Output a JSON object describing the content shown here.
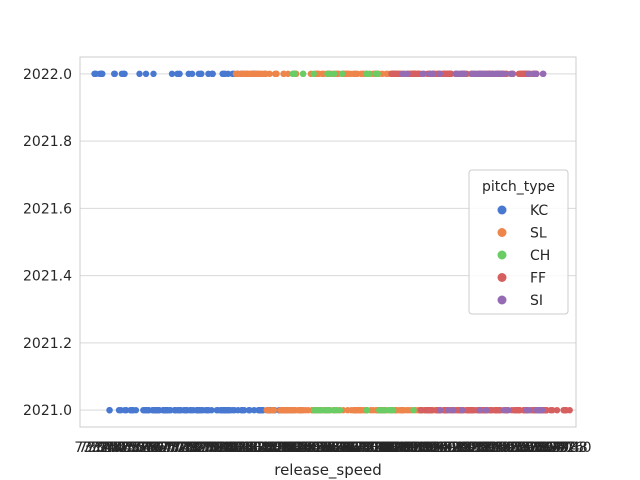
{
  "chart_data": {
    "type": "scatter",
    "style": "strip",
    "title": "",
    "xlabel": "release_speed",
    "ylabel": "",
    "y_ticks": [
      "2021.0",
      "2021.2",
      "2021.4",
      "2021.6",
      "2021.8",
      "2022.0"
    ],
    "ylim": [
      2020.95,
      2022.05
    ],
    "grid": true,
    "x_categories_note": "Hundreds of overlapping categorical release_speed tick labels (approx. 73.0 to 98.0 mph) render as an illegible smear along the x-axis.",
    "x_range": [
      73.0,
      98.0
    ],
    "legend": {
      "title": "pitch_type",
      "placement": "center-right",
      "entries": [
        {
          "name": "KC",
          "color": "#4878d0"
        },
        {
          "name": "SL",
          "color": "#ee854a"
        },
        {
          "name": "CH",
          "color": "#6acc64"
        },
        {
          "name": "FF",
          "color": "#d65f5f"
        },
        {
          "name": "SI",
          "color": "#956cb4"
        }
      ]
    },
    "series": [
      {
        "name": "KC",
        "color": "#4878d0",
        "rows": [
          {
            "year": 2022,
            "speed_range": [
              73.0,
              81.5
            ],
            "points": 40
          },
          {
            "year": 2021,
            "speed_range": [
              74.0,
              84.0
            ],
            "points": 120
          }
        ]
      },
      {
        "name": "SL",
        "color": "#ee854a",
        "rows": [
          {
            "year": 2022,
            "speed_range": [
              80.5,
              90.0
            ],
            "points": 110
          },
          {
            "year": 2021,
            "speed_range": [
              82.0,
              91.0
            ],
            "points": 110
          }
        ]
      },
      {
        "name": "CH",
        "color": "#6acc64",
        "rows": [
          {
            "year": 2022,
            "speed_range": [
              83.0,
              88.0
            ],
            "points": 15
          },
          {
            "year": 2021,
            "speed_range": [
              84.5,
              90.5
            ],
            "points": 25
          }
        ]
      },
      {
        "name": "FF",
        "color": "#d65f5f",
        "rows": [
          {
            "year": 2022,
            "speed_range": [
              88.5,
              96.0
            ],
            "points": 110
          },
          {
            "year": 2021,
            "speed_range": [
              90.0,
              98.0
            ],
            "points": 130
          }
        ]
      },
      {
        "name": "SI",
        "color": "#956cb4",
        "rows": [
          {
            "year": 2022,
            "speed_range": [
              89.0,
              97.0
            ],
            "points": 40
          },
          {
            "year": 2021,
            "speed_range": [
              91.0,
              96.5
            ],
            "points": 15
          }
        ]
      }
    ]
  }
}
